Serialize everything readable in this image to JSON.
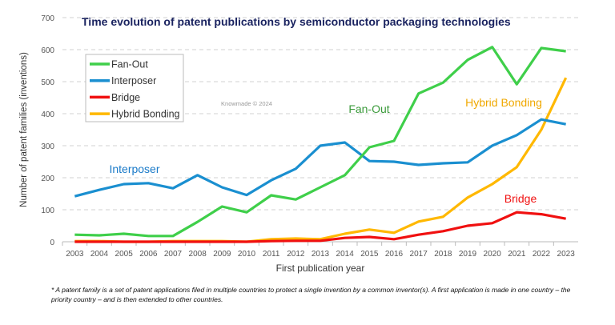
{
  "chart_data": {
    "type": "line",
    "title": "Time evolution of patent publications by semiconductor packaging technologies",
    "xlabel": "First publication year",
    "ylabel": "Number of patent families (inventions)",
    "ylim": [
      0,
      700
    ],
    "yticks": [
      0,
      100,
      200,
      300,
      400,
      500,
      600,
      700
    ],
    "grid": true,
    "legend": "top-left",
    "watermark": "Knowmade © 2024",
    "x": [
      2003,
      2004,
      2005,
      2006,
      2007,
      2008,
      2009,
      2010,
      2011,
      2012,
      2013,
      2014,
      2015,
      2016,
      2017,
      2018,
      2019,
      2020,
      2021,
      2022,
      2023
    ],
    "series": [
      {
        "name": "Fan-Out",
        "color": "#3fcf4a",
        "label_color": "#3a9a3a",
        "values": [
          22,
          20,
          25,
          18,
          18,
          62,
          110,
          92,
          145,
          132,
          170,
          208,
          295,
          315,
          463,
          497,
          568,
          608,
          492,
          605,
          595
        ]
      },
      {
        "name": "Interposer",
        "color": "#1a8fd0",
        "label_color": "#1a7ac8",
        "values": [
          142,
          162,
          180,
          183,
          167,
          208,
          170,
          146,
          192,
          228,
          300,
          310,
          252,
          250,
          240,
          245,
          248,
          300,
          333,
          382,
          367
        ]
      },
      {
        "name": "Bridge",
        "color": "#f01010",
        "label_color": "#f01010",
        "values": [
          0,
          0,
          0,
          0,
          0,
          0,
          0,
          0,
          2,
          3,
          3,
          12,
          15,
          8,
          22,
          33,
          50,
          58,
          92,
          86,
          72
        ]
      },
      {
        "name": "Hybrid Bonding",
        "color": "#ffb800",
        "label_color": "#f0a800",
        "values": [
          2,
          2,
          0,
          0,
          2,
          2,
          2,
          0,
          8,
          10,
          8,
          25,
          38,
          28,
          63,
          78,
          138,
          180,
          233,
          350,
          512
        ]
      }
    ]
  },
  "footnote": "* A patent family is a set of patent applications filed in multiple countries to protect a single invention by a common inventor(s). A first application is made in one country – the priority country – and is then extended to other countries."
}
